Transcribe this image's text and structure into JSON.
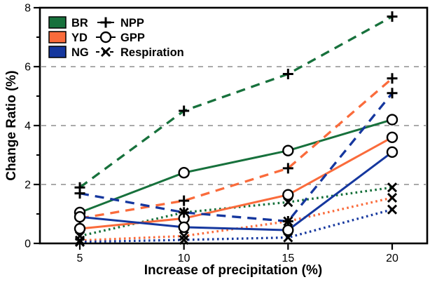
{
  "chart_data": {
    "type": "line",
    "title": "",
    "xlabel": "Increase of precipitation (%)",
    "ylabel": "Change Ratio (%)",
    "x": [
      5,
      10,
      15,
      20
    ],
    "xtick_labels": [
      "5",
      "10",
      "15",
      "20"
    ],
    "ytick_values": [
      0,
      2,
      4,
      6,
      8
    ],
    "ytick_labels": [
      "0",
      "2",
      "4",
      "6",
      "8"
    ],
    "yminor_ticks": [
      1,
      3,
      5,
      7
    ],
    "ylim": [
      0,
      8
    ],
    "grid_y": [
      2,
      4,
      6
    ],
    "grid_on": true,
    "legend_position": "top-left-inside",
    "colors": {
      "BR": "#17713c",
      "YD": "#fa6b3b",
      "NG": "#15379e",
      "grid": "#9e9e9e",
      "axis": "#000000",
      "marker": "#000000",
      "background": "#ffffff"
    },
    "series": [
      {
        "name": "BR NPP",
        "site": "BR",
        "metric": "NPP",
        "color": "#17713c",
        "line_style": "dashed",
        "marker": "plus",
        "values": [
          1.9,
          4.5,
          5.75,
          7.7
        ]
      },
      {
        "name": "BR GPP",
        "site": "BR",
        "metric": "GPP",
        "color": "#17713c",
        "line_style": "solid",
        "marker": "circle",
        "values": [
          1.05,
          2.4,
          3.15,
          4.2
        ]
      },
      {
        "name": "BR Respiration",
        "site": "BR",
        "metric": "Respiration",
        "color": "#17713c",
        "line_style": "dotted",
        "marker": "x",
        "values": [
          0.25,
          1.05,
          1.4,
          1.9
        ]
      },
      {
        "name": "YD NPP",
        "site": "YD",
        "metric": "NPP",
        "color": "#fa6b3b",
        "line_style": "dashed",
        "marker": "plus",
        "values": [
          0.85,
          1.45,
          2.55,
          5.6
        ]
      },
      {
        "name": "YD GPP",
        "site": "YD",
        "metric": "GPP",
        "color": "#fa6b3b",
        "line_style": "solid",
        "marker": "circle",
        "values": [
          0.5,
          0.85,
          1.65,
          3.6
        ]
      },
      {
        "name": "YD Respiration",
        "site": "YD",
        "metric": "Respiration",
        "color": "#fa6b3b",
        "line_style": "dotted",
        "marker": "x",
        "values": [
          0.1,
          0.25,
          0.75,
          1.55
        ]
      },
      {
        "name": "NG NPP",
        "site": "NG",
        "metric": "NPP",
        "color": "#15379e",
        "line_style": "dashed",
        "marker": "plus",
        "values": [
          1.7,
          1.05,
          0.75,
          5.1
        ]
      },
      {
        "name": "NG GPP",
        "site": "NG",
        "metric": "GPP",
        "color": "#15379e",
        "line_style": "solid",
        "marker": "circle",
        "values": [
          0.9,
          0.55,
          0.45,
          3.1
        ]
      },
      {
        "name": "NG Respiration",
        "site": "NG",
        "metric": "Respiration",
        "color": "#15379e",
        "line_style": "dotted",
        "marker": "x",
        "values": [
          0.05,
          0.12,
          0.2,
          1.15
        ]
      }
    ],
    "legend": {
      "sites": [
        {
          "label": "BR",
          "color": "#17713c"
        },
        {
          "label": "YD",
          "color": "#fa6b3b"
        },
        {
          "label": "NG",
          "color": "#15379e"
        }
      ],
      "metrics": [
        {
          "label": "NPP",
          "marker": "plus"
        },
        {
          "label": "GPP",
          "marker": "circle"
        },
        {
          "label": "Respiration",
          "marker": "x"
        }
      ]
    }
  }
}
